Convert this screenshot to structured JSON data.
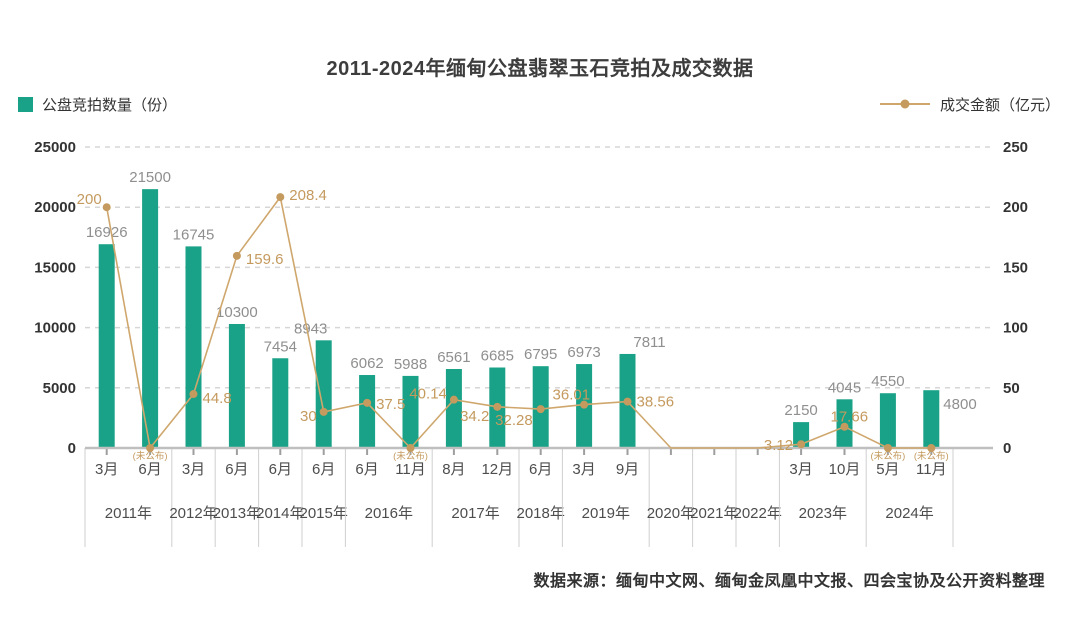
{
  "legend": {
    "bars": "公盘竞拍数量（份）",
    "line": "成交金额（亿元）"
  },
  "source": "数据来源：缅甸中文网、缅甸金凤凰中文报、四会宝协及公开资料整理",
  "colors": {
    "bar": "#19a287",
    "line": "#cfa76d",
    "line_marker": "#c49a5e",
    "line_label": "#c49a5e",
    "bar_label": "#8f8f8f",
    "axis_label": "#333333",
    "grid": "#d6d6d6",
    "axis_line": "#bfbfbf",
    "tick": "#9e9e9e",
    "divider": "#cfcfcf",
    "month_label": "#4d4d4d"
  },
  "chart_data": {
    "type": "bar+line dual-axis",
    "title": "2011-2024年缅甸公盘翡翠玉石竞拍及成交数据",
    "legend_position": "top",
    "grid": "dashed horizontal",
    "series": [
      {
        "name": "公盘竞拍数量（份）",
        "type": "bar",
        "axis": "left"
      },
      {
        "name": "成交金额（亿元）",
        "type": "line",
        "axis": "right"
      }
    ],
    "left_axis": {
      "min": 0,
      "max": 25000,
      "ticks": [
        0,
        5000,
        10000,
        15000,
        20000,
        25000
      ]
    },
    "right_axis": {
      "min": 0,
      "max": 250,
      "ticks": [
        0,
        50,
        100,
        150,
        200,
        250
      ]
    },
    "unpublished_note": "(未公布)",
    "years": [
      {
        "label": "2011年",
        "points": [
          {
            "month": "3月",
            "auctions": 16926,
            "amount": 200
          },
          {
            "month": "6月",
            "auctions": 21500,
            "amount": 0,
            "unpublished": true
          }
        ]
      },
      {
        "label": "2012年",
        "points": [
          {
            "month": "3月",
            "auctions": 16745,
            "amount": 44.8
          }
        ]
      },
      {
        "label": "2013年",
        "points": [
          {
            "month": "6月",
            "auctions": 10300,
            "amount": 159.6
          }
        ]
      },
      {
        "label": "2014年",
        "points": [
          {
            "month": "6月",
            "auctions": 7454,
            "amount": 208.4
          }
        ]
      },
      {
        "label": "2015年",
        "points": [
          {
            "month": "6月",
            "auctions": 8943,
            "amount": 30
          }
        ]
      },
      {
        "label": "2016年",
        "points": [
          {
            "month": "6月",
            "auctions": 6062,
            "amount": 37.5
          },
          {
            "month": "11月",
            "auctions": 5988,
            "amount": 0,
            "unpublished": true
          }
        ]
      },
      {
        "label": "2017年",
        "points": [
          {
            "month": "8月",
            "auctions": 6561,
            "amount": 40.14
          },
          {
            "month": "12月",
            "auctions": 6685,
            "amount": 34.2
          }
        ]
      },
      {
        "label": "2018年",
        "points": [
          {
            "month": "6月",
            "auctions": 6795,
            "amount": 32.28
          }
        ]
      },
      {
        "label": "2019年",
        "points": [
          {
            "month": "3月",
            "auctions": 6973,
            "amount": 36.01
          },
          {
            "month": "9月",
            "auctions": 7811,
            "amount": 38.56
          }
        ]
      },
      {
        "label": "2020年",
        "points": []
      },
      {
        "label": "2021年",
        "points": []
      },
      {
        "label": "2022年",
        "points": []
      },
      {
        "label": "2023年",
        "points": [
          {
            "month": "3月",
            "auctions": 2150,
            "amount": 3.12
          },
          {
            "month": "10月",
            "auctions": 4045,
            "amount": 17.66
          }
        ]
      },
      {
        "label": "2024年",
        "points": [
          {
            "month": "5月",
            "auctions": 4550,
            "amount": 0,
            "unpublished": true
          },
          {
            "month": "11月",
            "auctions": 4800,
            "amount": 0,
            "unpublished": true
          }
        ]
      }
    ]
  }
}
